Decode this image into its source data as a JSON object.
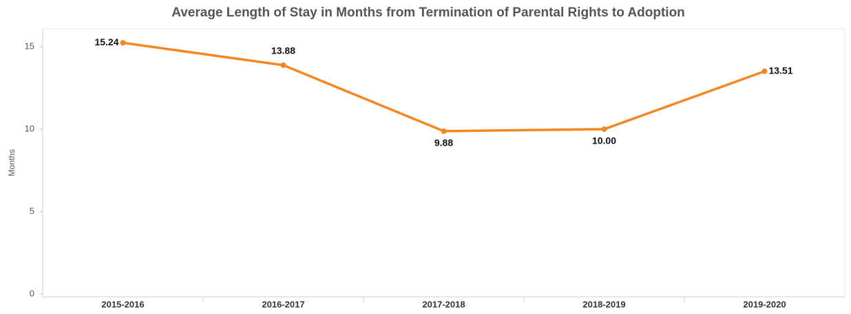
{
  "chart_data": {
    "type": "line",
    "title": "Average Length of Stay in Months from Termination of Parental Rights to Adoption",
    "y_label": "Months",
    "categories": [
      "2015-2016",
      "2016-2017",
      "2017-2018",
      "2018-2019",
      "2019-2020"
    ],
    "series": [
      {
        "name": "Average Length of Stay",
        "color": "#f7861e",
        "values": [
          15.24,
          13.88,
          9.88,
          10.0,
          13.51
        ],
        "value_labels": [
          "15.24",
          "13.88",
          "9.88",
          "10.00",
          "13.51"
        ]
      }
    ],
    "ylim": [
      0,
      16
    ],
    "yticks": [
      0,
      5,
      10,
      15
    ],
    "grid": false
  }
}
